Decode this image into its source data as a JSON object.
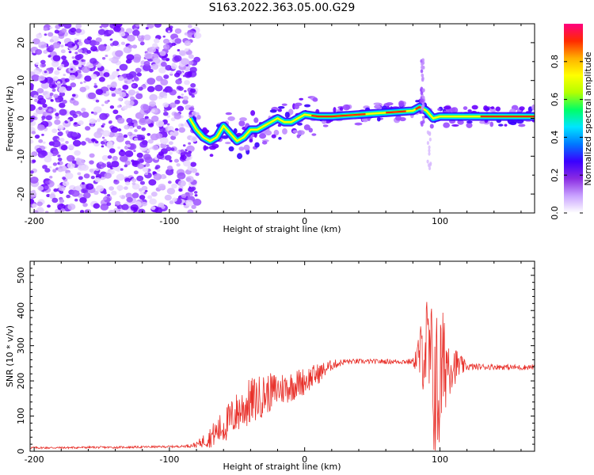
{
  "figure": {
    "title": "S163.2022.363.05.00.G29"
  },
  "chart_data": [
    {
      "type": "heatmap",
      "panel": "top",
      "xlabel": "Height of straight line (km)",
      "ylabel": "Frequency (Hz)",
      "xlim": [
        -203,
        170
      ],
      "ylim": [
        -25,
        25
      ],
      "x_ticks": [
        -200,
        -100,
        0,
        100
      ],
      "y_ticks": [
        -20,
        -10,
        0,
        10,
        20
      ],
      "noise_region": {
        "x_range": [
          -203,
          -85
        ],
        "y_range": [
          -25,
          25
        ]
      },
      "ridge": {
        "x": [
          -85,
          -80,
          -75,
          -70,
          -65,
          -60,
          -55,
          -50,
          -45,
          -40,
          -35,
          -30,
          -25,
          -20,
          -15,
          -10,
          -5,
          0,
          10,
          20,
          40,
          60,
          80,
          85,
          90,
          95,
          100,
          110,
          130,
          150,
          170
        ],
        "y": [
          0,
          -3,
          -5,
          -6,
          -5,
          -2,
          -4,
          -6,
          -5,
          -3,
          -3,
          -2,
          -1,
          0,
          -1,
          -1,
          0,
          1,
          0.5,
          0.5,
          1,
          1.5,
          2,
          3,
          2,
          0,
          0.5,
          0.5,
          0.5,
          0.5,
          0.5
        ]
      },
      "spike": {
        "x": 87,
        "y_range": [
          -3,
          16
        ]
      },
      "colorbar": {
        "label": "Normalized spectral amplitude",
        "range": [
          0,
          1
        ],
        "ticks": [
          "0.0",
          "0.2",
          "0.4",
          "0.6",
          "0.8"
        ],
        "colors": [
          "#ffffff",
          "#c9a2ff",
          "#8a2be2",
          "#3a00ff",
          "#0078ff",
          "#00e5ff",
          "#00ff66",
          "#b4ff00",
          "#ffff00",
          "#ffb000",
          "#ff2a00",
          "#ff0080"
        ]
      }
    },
    {
      "type": "line",
      "panel": "bottom",
      "xlabel": "Height of straight line (km)",
      "ylabel": "SNR (10 * v/v)",
      "xlim": [
        -203,
        170
      ],
      "ylim": [
        0,
        540
      ],
      "x_ticks": [
        -200,
        -100,
        0,
        100
      ],
      "y_ticks": [
        0,
        100,
        200,
        300,
        400,
        500
      ],
      "color": "#e8302a",
      "series": [
        {
          "x": [
            -203,
            -180,
            -160,
            -140,
            -120,
            -100,
            -90,
            -80,
            -70,
            -60,
            -50,
            -40,
            -30,
            -20,
            -10,
            0,
            10,
            20,
            30,
            40,
            60,
            80,
            85,
            90,
            95,
            98,
            100,
            105,
            110,
            120,
            140,
            160,
            170
          ],
          "y": [
            10,
            10,
            11,
            11,
            12,
            13,
            14,
            18,
            40,
            70,
            110,
            140,
            160,
            175,
            185,
            200,
            220,
            245,
            255,
            255,
            255,
            255,
            270,
            300,
            200,
            150,
            200,
            260,
            245,
            240,
            240,
            238,
            240
          ],
          "noise": [
            3,
            3,
            3,
            3,
            3,
            3,
            3,
            8,
            30,
            50,
            60,
            70,
            60,
            50,
            45,
            40,
            30,
            15,
            8,
            7,
            7,
            8,
            80,
            150,
            220,
            260,
            220,
            120,
            60,
            10,
            8,
            8,
            8
          ]
        }
      ]
    }
  ]
}
